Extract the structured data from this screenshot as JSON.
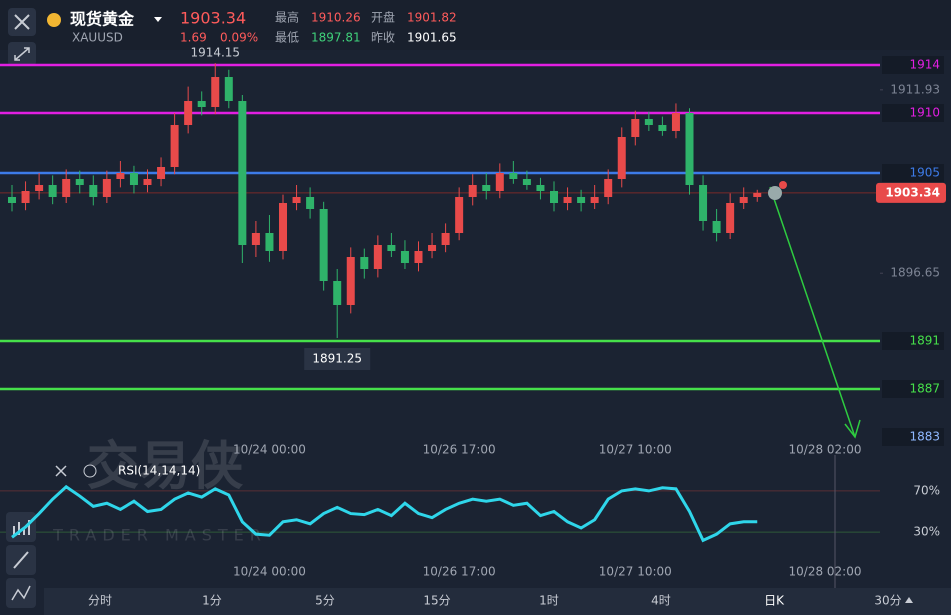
{
  "header": {
    "name": "现货黄金",
    "symbol": "XAUUSD",
    "change": "1.69",
    "change_pct": "0.09%",
    "stats": [
      {
        "label": "最高",
        "value": "1910.26",
        "color": "#ff5b5b"
      },
      {
        "label": "开盘",
        "value": "1901.82",
        "color": "#ff5b5b"
      },
      {
        "label": "最低",
        "value": "1897.81",
        "color": "#3fd07a"
      },
      {
        "label": "昨收",
        "value": "1901.65",
        "color": "#ffffff"
      }
    ]
  },
  "chart_data": {
    "type": "candlestick",
    "last": 1903.34,
    "categories": [
      null,
      null,
      null,
      null,
      null,
      null,
      null,
      null,
      null,
      null,
      null,
      null,
      null,
      null,
      null,
      null,
      null,
      null,
      null,
      "10/24 00:00",
      null,
      null,
      null,
      null,
      null,
      null,
      null,
      null,
      null,
      null,
      null,
      null,
      null,
      "10/26 17:00",
      null,
      null,
      null,
      null,
      null,
      null,
      null,
      null,
      null,
      null,
      null,
      null,
      "10/27 10:00",
      null,
      null,
      null,
      null,
      null,
      null,
      null,
      null,
      null,
      null,
      null,
      null,
      null,
      "10/28 02:00"
    ],
    "open": [
      1903,
      1902.5,
      1903.5,
      1904,
      1903,
      1904.5,
      1904,
      1903,
      1904.5,
      1905,
      1904,
      1904.5,
      1905.5,
      1909,
      1911,
      1910.5,
      1913,
      1911,
      1899,
      1900,
      1898.5,
      1902.5,
      1903,
      1902,
      1896,
      1894,
      1898,
      1897,
      1899,
      1898.5,
      1897.5,
      1898.5,
      1899,
      1900,
      1903,
      1904,
      1903.5,
      1905,
      1904.5,
      1904,
      1903.5,
      1902.5,
      1903,
      1902.5,
      1903,
      1904.5,
      1908,
      1909.5,
      1909,
      1908.5,
      1910,
      1904,
      1901,
      1900,
      1902.5,
      1903,
      null,
      null,
      null,
      null,
      null
    ],
    "high": [
      1904,
      1904.3,
      1905,
      1904.8,
      1905.3,
      1905.2,
      1904.8,
      1905.2,
      1906,
      1905.6,
      1905.3,
      1906.3,
      1910,
      1912.2,
      1911.8,
      1914.15,
      1913.6,
      1911.5,
      1901,
      1901.5,
      1903.2,
      1904,
      1903.8,
      1902.6,
      1897,
      1898.8,
      1898.7,
      1899.8,
      1900,
      1899.4,
      1899.3,
      1900,
      1900.8,
      1903.8,
      1904.9,
      1905,
      1905.8,
      1906,
      1905.2,
      1904.6,
      1904.3,
      1903.8,
      1903.6,
      1904,
      1905.3,
      1908.8,
      1910.2,
      1910.1,
      1909.7,
      1910.8,
      1910.4,
      1904.8,
      1902,
      1903.3,
      1903.8,
      1903.6,
      null,
      null,
      null,
      null,
      null
    ],
    "low": [
      1901.8,
      1901.9,
      1902.8,
      1902.4,
      1902.5,
      1903.3,
      1902.3,
      1902.5,
      1903.8,
      1903.3,
      1903.4,
      1903.9,
      1904.9,
      1908.3,
      1909.8,
      1909.9,
      1910.4,
      1897.5,
      1898,
      1897.6,
      1897.8,
      1901.9,
      1901.2,
      1895.2,
      1891.25,
      1893.3,
      1896.2,
      1896.3,
      1898,
      1897,
      1896.8,
      1897.9,
      1898.4,
      1899.4,
      1902.3,
      1902.8,
      1902.9,
      1904.1,
      1903.6,
      1902.8,
      1901.8,
      1901.9,
      1901.8,
      1902,
      1902.4,
      1903.8,
      1907.3,
      1908.5,
      1908.1,
      1907.9,
      1903.2,
      1900.2,
      1899.3,
      1899.5,
      1902,
      1902.6,
      null,
      null,
      null,
      null,
      null
    ],
    "close": [
      1902.5,
      1903.5,
      1904,
      1903,
      1904.5,
      1904,
      1903,
      1904.5,
      1905,
      1904,
      1904.5,
      1905.5,
      1909,
      1911,
      1910.5,
      1913,
      1911,
      1899,
      1900,
      1898.5,
      1902.5,
      1903,
      1902,
      1896,
      1894,
      1898,
      1897,
      1899,
      1898.5,
      1897.5,
      1898.5,
      1899,
      1900,
      1903,
      1904,
      1903.5,
      1905,
      1904.5,
      1904,
      1903.5,
      1902.5,
      1903,
      1902.5,
      1903,
      1904.5,
      1908,
      1909.5,
      1909,
      1908.5,
      1910,
      1904,
      1901,
      1900,
      1902.5,
      1903,
      1903.34,
      null,
      null,
      null,
      null,
      null
    ],
    "up_color": "#e84a4a",
    "down_color": "#2fb36a",
    "ylim": [
      1882.75,
      1915.25
    ],
    "yticks": [
      1911.93,
      1896.65
    ],
    "levels": [
      {
        "value": 1914,
        "color": "#e21fe2"
      },
      {
        "value": 1910,
        "color": "#e21fe2"
      },
      {
        "value": 1905,
        "color": "#3d7be8"
      },
      {
        "value": 1891,
        "color": "#46e04a"
      },
      {
        "value": 1887,
        "color": "#46e04a"
      },
      {
        "value": 1883,
        "color": "#8fb8ff",
        "line": false
      }
    ],
    "indicator": {
      "name": "RSI(14,14,14)",
      "color": "#2fd6ea",
      "ylim": [
        0,
        100
      ],
      "yticks": [
        {
          "value": 70,
          "label": "70%"
        },
        {
          "value": 30,
          "label": "30%"
        }
      ],
      "values": [
        25,
        35,
        48,
        62,
        74,
        65,
        55,
        58,
        52,
        60,
        50,
        52,
        62,
        68,
        64,
        72,
        66,
        40,
        28,
        27,
        40,
        42,
        38,
        48,
        54,
        48,
        47,
        52,
        46,
        58,
        48,
        44,
        52,
        58,
        62,
        60,
        62,
        56,
        58,
        46,
        50,
        40,
        34,
        42,
        62,
        70,
        72,
        70,
        73,
        72,
        50,
        22,
        28,
        38,
        40,
        40,
        null,
        null,
        null,
        null,
        null
      ]
    }
  },
  "watermark": {
    "title": "交易侠",
    "subtitle": "TRADER MASTER"
  },
  "tabs": [
    "分时",
    "1分",
    "5分",
    "15分",
    "1时",
    "4时",
    "日K",
    "30分"
  ]
}
